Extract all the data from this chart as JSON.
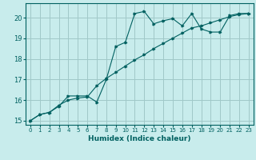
{
  "xlabel": "Humidex (Indice chaleur)",
  "ylabel": "",
  "background_color": "#c8ecec",
  "grid_color": "#a0c8c8",
  "line_color": "#006060",
  "xlim": [
    -0.5,
    23.5
  ],
  "ylim": [
    14.8,
    20.7
  ],
  "xticks": [
    0,
    1,
    2,
    3,
    4,
    5,
    6,
    7,
    8,
    9,
    10,
    11,
    12,
    13,
    14,
    15,
    16,
    17,
    18,
    19,
    20,
    21,
    22,
    23
  ],
  "yticks": [
    15,
    16,
    17,
    18,
    19,
    20
  ],
  "line1_x": [
    0,
    1,
    2,
    3,
    4,
    5,
    6,
    7,
    8,
    9,
    10,
    11,
    12,
    13,
    14,
    15,
    16,
    17,
    18,
    19,
    20,
    21,
    22,
    23
  ],
  "line1_y": [
    15.0,
    15.3,
    15.4,
    15.7,
    16.2,
    16.2,
    16.2,
    15.9,
    17.0,
    18.6,
    18.8,
    20.2,
    20.3,
    19.7,
    19.85,
    19.95,
    19.6,
    20.2,
    19.45,
    19.3,
    19.3,
    20.1,
    20.2,
    20.2
  ],
  "line2_x": [
    0,
    1,
    2,
    3,
    4,
    5,
    6,
    7,
    8,
    9,
    10,
    11,
    12,
    13,
    14,
    15,
    16,
    17,
    18,
    19,
    20,
    21,
    22,
    23
  ],
  "line2_y": [
    15.0,
    15.3,
    15.4,
    15.75,
    16.0,
    16.1,
    16.15,
    16.7,
    17.05,
    17.35,
    17.65,
    17.95,
    18.2,
    18.5,
    18.75,
    19.0,
    19.25,
    19.5,
    19.6,
    19.75,
    19.9,
    20.05,
    20.15,
    20.2
  ]
}
